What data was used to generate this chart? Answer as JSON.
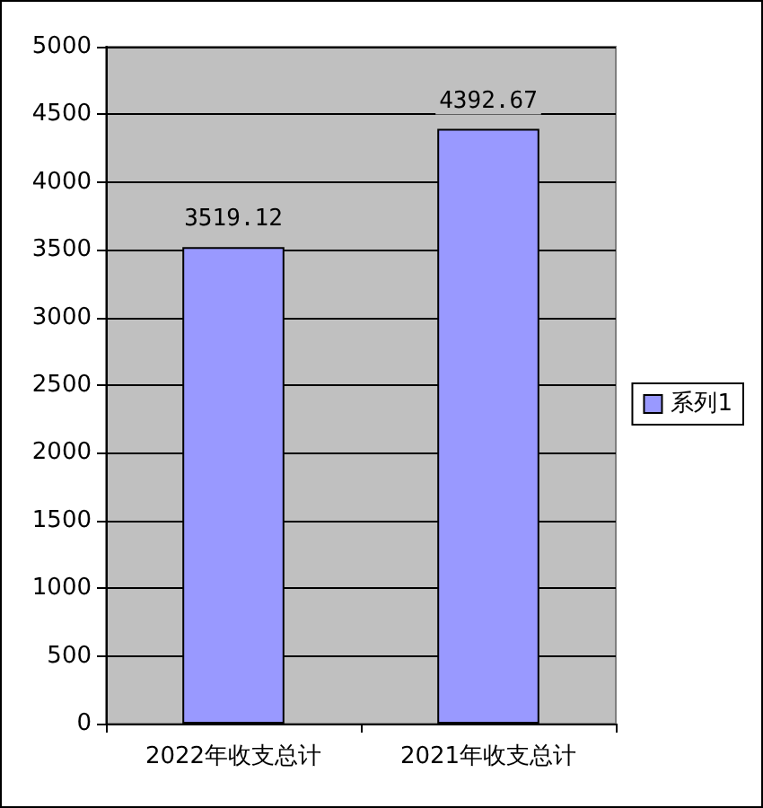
{
  "chart_data": {
    "type": "bar",
    "categories": [
      "2022年收支总计",
      "2021年收支总计"
    ],
    "series": [
      {
        "name": "系列1",
        "color": "#9999ff",
        "values": [
          3519.12,
          4392.67
        ]
      }
    ],
    "ylim": [
      0,
      5000
    ],
    "yticks": [
      0,
      500,
      1000,
      1500,
      2000,
      2500,
      3000,
      3500,
      4000,
      4500,
      5000
    ],
    "grid": "y",
    "legend": "right",
    "data_labels": true
  }
}
